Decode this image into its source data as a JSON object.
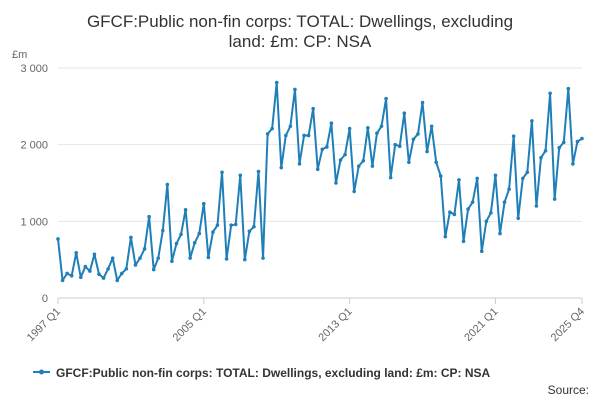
{
  "chart_data": {
    "type": "line",
    "title_line1": "GFCF:Public non-fin corps: TOTAL: Dwellings, excluding",
    "title_line2": "land: £m: CP: NSA",
    "unit_label": "£m",
    "y_ticks": [
      0,
      1000,
      2000,
      3000
    ],
    "y_tick_labels": [
      "0",
      "1 000",
      "2 000",
      "3 000"
    ],
    "ylim": [
      0,
      3000
    ],
    "x_tick_labels": [
      "1997 Q1",
      "2005 Q1",
      "2013 Q1",
      "2021 Q1",
      "2025 Q4"
    ],
    "x_tick_indices": [
      0,
      32,
      64,
      96,
      115
    ],
    "series_color": "#1f7fb8",
    "legend": "GFCF:Public non-fin corps: TOTAL: Dwellings, excluding land: £m: CP: NSA",
    "source": "Source:",
    "series": [
      {
        "name": "GFCF:Public non-fin corps: TOTAL: Dwellings, excluding land: £m: CP: NSA",
        "start": "1997 Q1",
        "values": [
          770,
          230,
          320,
          290,
          590,
          270,
          410,
          350,
          570,
          310,
          260,
          380,
          520,
          230,
          320,
          380,
          790,
          430,
          520,
          640,
          1060,
          370,
          520,
          880,
          1480,
          480,
          710,
          830,
          1150,
          520,
          720,
          840,
          1230,
          530,
          860,
          950,
          1640,
          510,
          950,
          960,
          1600,
          500,
          870,
          930,
          1650,
          520,
          2140,
          2210,
          2810,
          1700,
          2120,
          2240,
          2720,
          1750,
          2120,
          2120,
          2470,
          1680,
          1940,
          1970,
          2280,
          1500,
          1800,
          1870,
          2210,
          1390,
          1720,
          1790,
          2220,
          1720,
          2150,
          2240,
          2600,
          1570,
          2000,
          1980,
          2410,
          1770,
          2070,
          2140,
          2550,
          1910,
          2240,
          1770,
          1590,
          800,
          1120,
          1090,
          1540,
          740,
          1160,
          1250,
          1560,
          610,
          1000,
          1110,
          1600,
          840,
          1250,
          1420,
          2110,
          1040,
          1560,
          1640,
          2310,
          1200,
          1830,
          1920,
          2670,
          1290,
          1960,
          2030,
          2730,
          1750,
          2040,
          2080
        ]
      }
    ]
  }
}
